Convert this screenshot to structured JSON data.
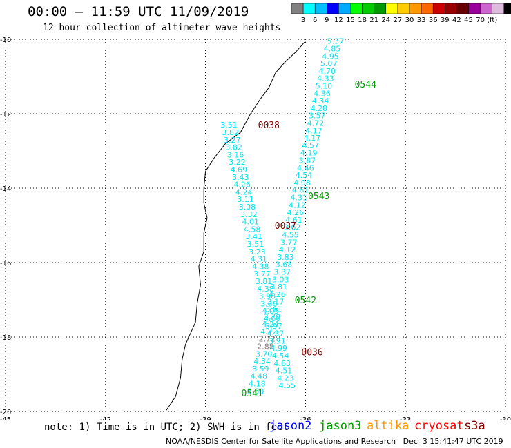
{
  "title": "00:00 – 11:59 UTC 11/09/2019",
  "subtitle": "12 hour collection of altimeter wave heights",
  "note": "note: 1) Time is in UTC; 2) SWH is in feet",
  "satellites": [
    {
      "name": "jason2",
      "color": "#0000ff"
    },
    {
      "name": "jason3",
      "color": "#009900"
    },
    {
      "name": "altika",
      "color": "#ff9900"
    },
    {
      "name": "cryosat",
      "color": "#ff0000"
    },
    {
      "name": "s3a",
      "color": "#800000"
    }
  ],
  "footer": "NOAA/NESDIS Center for Satellite Applications and Research   Dec  3 15:41:47 UTC 2019",
  "colorbar": {
    "colors": [
      "#808080",
      "#00ffff",
      "#00bfff",
      "#0000ff",
      "#00aaff",
      "#00ff00",
      "#00cc00",
      "#009900",
      "#ffff00",
      "#ffcc00",
      "#ff9900",
      "#ff6600",
      "#cc0000",
      "#990000",
      "#660000",
      "#990099",
      "#cc66cc",
      "#ddbbdd",
      "#000000"
    ],
    "labels": [
      "3",
      "6",
      "9",
      "12",
      "15",
      "18",
      "21",
      "24",
      "27",
      "30",
      "33",
      "36",
      "39",
      "42",
      "45",
      "70",
      "(ft)"
    ]
  },
  "chart_data": {
    "type": "scatter",
    "xlim": [
      -45,
      -30
    ],
    "ylim": [
      -20,
      -10
    ],
    "x_ticks": [
      "-45",
      "-42",
      "-39",
      "-36",
      "-33",
      "-30"
    ],
    "y_ticks": [
      "-10",
      "-12",
      "-14",
      "-16",
      "-18",
      "-20"
    ],
    "grid": true,
    "tracks": [
      {
        "time": "0544",
        "color": "#009900",
        "points": [
          {
            "x": -35.1,
            "y": -10.05,
            "v": "5.37"
          },
          {
            "x": -35.2,
            "y": -10.25,
            "v": "4.85"
          },
          {
            "x": -35.25,
            "y": -10.45,
            "v": "4.95"
          },
          {
            "x": -35.3,
            "y": -10.65,
            "v": "5.07"
          },
          {
            "x": -35.35,
            "y": -10.85,
            "v": "4.70"
          },
          {
            "x": -35.4,
            "y": -11.05,
            "v": "4.33"
          },
          {
            "x": -35.45,
            "y": -11.25,
            "v": "5.10"
          },
          {
            "x": -35.5,
            "y": -11.45,
            "v": "4.36"
          },
          {
            "x": -35.55,
            "y": -11.65,
            "v": "4.34"
          },
          {
            "x": -35.6,
            "y": -11.85,
            "v": "4.28"
          },
          {
            "x": -35.65,
            "y": -12.05,
            "v": "3.57"
          },
          {
            "x": -35.7,
            "y": -12.25,
            "v": "4.72"
          },
          {
            "x": -35.75,
            "y": -12.45,
            "v": "4.17"
          },
          {
            "x": -35.8,
            "y": -12.65,
            "v": "4.17"
          },
          {
            "x": -35.85,
            "y": -12.85,
            "v": "4.57"
          },
          {
            "x": -35.9,
            "y": -13.05,
            "v": "4.19"
          },
          {
            "x": -35.95,
            "y": -13.25,
            "v": "3.87"
          },
          {
            "x": -36.0,
            "y": -13.45,
            "v": "4.46"
          },
          {
            "x": -36.05,
            "y": -13.65,
            "v": "4.54"
          },
          {
            "x": -36.1,
            "y": -13.85,
            "v": "4.08"
          }
        ]
      },
      {
        "time": "0543",
        "color": "#009900",
        "points": [
          {
            "x": -36.15,
            "y": -14.05,
            "v": "4.61"
          },
          {
            "x": -36.2,
            "y": -14.25,
            "v": "4.31"
          },
          {
            "x": -36.25,
            "y": -14.45,
            "v": "4.12"
          },
          {
            "x": -36.3,
            "y": -14.65,
            "v": "4.26"
          },
          {
            "x": -36.35,
            "y": -14.85,
            "v": "4.61"
          },
          {
            "x": -36.4,
            "y": -15.05,
            "v": "3.62"
          },
          {
            "x": -36.45,
            "y": -15.25,
            "v": "4.55"
          },
          {
            "x": -36.5,
            "y": -15.45,
            "v": "3.77"
          },
          {
            "x": -36.55,
            "y": -15.65,
            "v": "4.12"
          },
          {
            "x": -36.6,
            "y": -15.85,
            "v": "3.83"
          },
          {
            "x": -36.65,
            "y": -16.05,
            "v": "3.68"
          },
          {
            "x": -36.7,
            "y": -16.25,
            "v": "3.37"
          },
          {
            "x": -36.75,
            "y": -16.45,
            "v": "3.03"
          },
          {
            "x": -36.8,
            "y": -16.65,
            "v": "3.81"
          },
          {
            "x": -36.85,
            "y": -16.85,
            "v": "4.26"
          }
        ]
      },
      {
        "time": "0542",
        "color": "#009900",
        "points": [
          {
            "x": -36.9,
            "y": -17.05,
            "v": "3.17"
          },
          {
            "x": -36.95,
            "y": -17.25,
            "v": "3.61"
          },
          {
            "x": -37.0,
            "y": -17.45,
            "v": "3.79"
          },
          {
            "x": -37.05,
            "y": -17.65,
            "v": "4.24"
          },
          {
            "x": -37.1,
            "y": -17.85,
            "v": "4.22"
          },
          {
            "x": -37.15,
            "y": -18.05,
            "v": "2.72"
          },
          {
            "x": -37.2,
            "y": -18.25,
            "v": "2.88"
          },
          {
            "x": -37.25,
            "y": -18.45,
            "v": "3.70"
          },
          {
            "x": -37.3,
            "y": -18.65,
            "v": "4.34"
          },
          {
            "x": -37.35,
            "y": -18.85,
            "v": "3.59"
          },
          {
            "x": -37.4,
            "y": -19.05,
            "v": "4.48"
          },
          {
            "x": -37.45,
            "y": -19.25,
            "v": "4.18"
          },
          {
            "x": -37.5,
            "y": -19.45,
            "v": "3.60"
          }
        ]
      },
      {
        "time": "0038",
        "color": "#800000",
        "points": [
          {
            "x": -38.3,
            "y": -12.3,
            "v": "3.51"
          },
          {
            "x": -38.25,
            "y": -12.5,
            "v": "3.82"
          },
          {
            "x": -38.2,
            "y": -12.7,
            "v": "3.27"
          },
          {
            "x": -38.15,
            "y": -12.9,
            "v": "3.82"
          },
          {
            "x": -38.1,
            "y": -13.1,
            "v": "3.16"
          },
          {
            "x": -38.05,
            "y": -13.3,
            "v": "3.22"
          },
          {
            "x": -38.0,
            "y": -13.5,
            "v": "4.69"
          },
          {
            "x": -37.95,
            "y": -13.7,
            "v": "3.43"
          },
          {
            "x": -37.9,
            "y": -13.9,
            "v": "4.26"
          },
          {
            "x": -37.85,
            "y": -14.1,
            "v": "4.24"
          },
          {
            "x": -37.8,
            "y": -14.3,
            "v": "3.11"
          }
        ]
      },
      {
        "time": "0037",
        "color": "#800000",
        "points": [
          {
            "x": -37.75,
            "y": -14.5,
            "v": "3.08"
          },
          {
            "x": -37.7,
            "y": -14.7,
            "v": "3.32"
          },
          {
            "x": -37.65,
            "y": -14.9,
            "v": "4.01"
          },
          {
            "x": -37.6,
            "y": -15.1,
            "v": "4.58"
          },
          {
            "x": -37.55,
            "y": -15.3,
            "v": "3.41"
          },
          {
            "x": -37.5,
            "y": -15.5,
            "v": "3.51"
          },
          {
            "x": -37.45,
            "y": -15.7,
            "v": "3.23"
          },
          {
            "x": -37.4,
            "y": -15.9,
            "v": "4.31"
          },
          {
            "x": -37.35,
            "y": -16.1,
            "v": "4.38"
          },
          {
            "x": -37.3,
            "y": -16.3,
            "v": "3.77"
          },
          {
            "x": -37.25,
            "y": -16.5,
            "v": "3.81"
          },
          {
            "x": -37.2,
            "y": -16.7,
            "v": "4.38"
          },
          {
            "x": -37.15,
            "y": -16.9,
            "v": "3.98"
          },
          {
            "x": -37.1,
            "y": -17.1,
            "v": "3.66"
          },
          {
            "x": -37.05,
            "y": -17.3,
            "v": "4.05"
          }
        ]
      },
      {
        "time": "0036",
        "color": "#800000",
        "points": [
          {
            "x": -37.0,
            "y": -17.5,
            "v": "4.60"
          },
          {
            "x": -36.95,
            "y": -17.7,
            "v": "3.97"
          },
          {
            "x": -36.9,
            "y": -17.9,
            "v": "4.37"
          },
          {
            "x": -36.85,
            "y": -18.1,
            "v": "3.91"
          },
          {
            "x": -36.8,
            "y": -18.3,
            "v": "4.99"
          },
          {
            "x": -36.75,
            "y": -18.5,
            "v": "4.54"
          },
          {
            "x": -36.7,
            "y": -18.7,
            "v": "4.63"
          },
          {
            "x": -36.65,
            "y": -18.9,
            "v": "4.51"
          },
          {
            "x": -36.6,
            "y": -19.1,
            "v": "4.23"
          },
          {
            "x": -36.55,
            "y": -19.3,
            "v": "4.55"
          }
        ]
      },
      {
        "time": "0541",
        "color": "#009900",
        "points": []
      }
    ]
  }
}
